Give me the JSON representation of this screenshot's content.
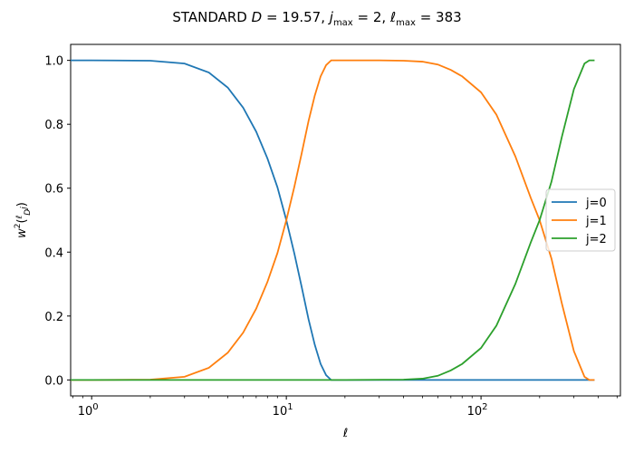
{
  "chart_data": {
    "type": "line",
    "title_parts": [
      "STANDARD ",
      "D",
      " = 19.57,  ",
      "j",
      "max",
      " = 2,  ",
      "ℓ",
      "max",
      " = 383"
    ],
    "xlabel": "ℓ",
    "ylabel_parts": [
      "w",
      "2",
      "(",
      "ℓ",
      "D",
      "j",
      ")"
    ],
    "xscale": "log",
    "xlim": [
      0.78,
      520
    ],
    "ylim": [
      -0.05,
      1.05
    ],
    "xtick_values": [
      1,
      10,
      100
    ],
    "xtick_labels": [
      [
        "10",
        "0"
      ],
      [
        "10",
        "1"
      ],
      [
        "10",
        "2"
      ]
    ],
    "ytick_values": [
      0.0,
      0.2,
      0.4,
      0.6,
      0.8,
      1.0
    ],
    "ytick_labels": [
      "0.0",
      "0.2",
      "0.4",
      "0.6",
      "0.8",
      "1.0"
    ],
    "grid": false,
    "legend_position": "center-right",
    "series": [
      {
        "name": "j=0",
        "color": "#1f77b4",
        "x": [
          0,
          1,
          2,
          3,
          4,
          5,
          6,
          7,
          8,
          9,
          10,
          11,
          12,
          13,
          14,
          15,
          16,
          17,
          18,
          19,
          20,
          30,
          50,
          100,
          200,
          383
        ],
        "y": [
          1.0,
          1.0,
          0.999,
          0.99,
          0.962,
          0.915,
          0.852,
          0.777,
          0.693,
          0.603,
          0.5,
          0.395,
          0.29,
          0.19,
          0.11,
          0.05,
          0.015,
          0.0,
          0.0,
          0.0,
          0.0,
          0.0,
          0.0,
          0.0,
          0.0,
          0.0
        ]
      },
      {
        "name": "j=1",
        "color": "#ff7f0e",
        "x": [
          0,
          1,
          2,
          3,
          4,
          5,
          6,
          7,
          8,
          9,
          10,
          11,
          12,
          13,
          14,
          15,
          16,
          17,
          18,
          19,
          20,
          30,
          40,
          50,
          60,
          70,
          80,
          100,
          120,
          150,
          180,
          200,
          230,
          260,
          300,
          340,
          360,
          383
        ],
        "y": [
          0.0,
          0.0,
          0.001,
          0.01,
          0.038,
          0.085,
          0.148,
          0.223,
          0.307,
          0.397,
          0.5,
          0.605,
          0.71,
          0.81,
          0.89,
          0.95,
          0.985,
          1.0,
          1.0,
          1.0,
          1.0,
          1.0,
          0.999,
          0.996,
          0.987,
          0.97,
          0.95,
          0.9,
          0.83,
          0.7,
          0.57,
          0.5,
          0.38,
          0.24,
          0.09,
          0.01,
          0.0,
          0.0
        ]
      },
      {
        "name": "j=2",
        "color": "#2ca02c",
        "x": [
          0,
          1,
          2,
          5,
          10,
          20,
          40,
          50,
          60,
          70,
          80,
          100,
          120,
          150,
          180,
          200,
          230,
          260,
          300,
          340,
          360,
          383
        ],
        "y": [
          0.0,
          0.0,
          0.0,
          0.0,
          0.0,
          0.0,
          0.001,
          0.004,
          0.013,
          0.03,
          0.05,
          0.1,
          0.17,
          0.3,
          0.43,
          0.5,
          0.62,
          0.76,
          0.91,
          0.99,
          1.0,
          1.0
        ]
      }
    ]
  }
}
